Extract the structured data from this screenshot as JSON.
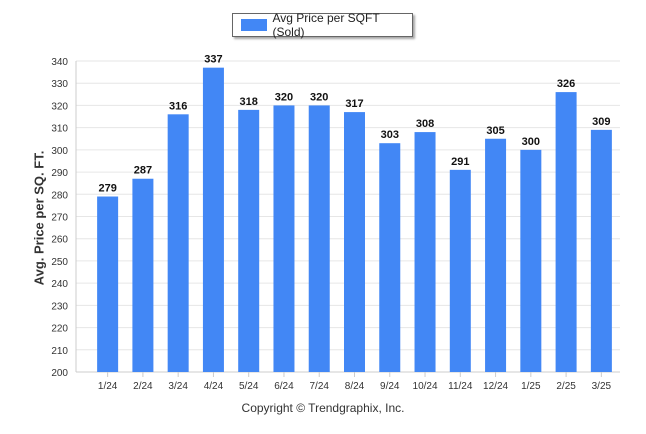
{
  "chart_data": {
    "type": "bar",
    "categories": [
      "1/24",
      "2/24",
      "3/24",
      "4/24",
      "5/24",
      "6/24",
      "7/24",
      "8/24",
      "9/24",
      "10/24",
      "11/24",
      "12/24",
      "1/25",
      "2/25",
      "3/25"
    ],
    "series": [
      {
        "name": "Avg Price per SQFT (Sold)",
        "values": [
          279,
          287,
          316,
          337,
          318,
          320,
          320,
          317,
          303,
          308,
          291,
          305,
          300,
          326,
          309
        ]
      }
    ],
    "ylabel": "Avg. Price per SQ. FT.",
    "xlabel": "",
    "ylim": [
      200,
      340
    ],
    "yticks": [
      200,
      210,
      220,
      230,
      240,
      250,
      260,
      270,
      280,
      290,
      300,
      310,
      320,
      330,
      340
    ],
    "grid": true,
    "legend_position": "top-center",
    "bar_color": "#4287f5"
  },
  "footer": {
    "copyright": "Copyright © Trendgraphix, Inc."
  }
}
